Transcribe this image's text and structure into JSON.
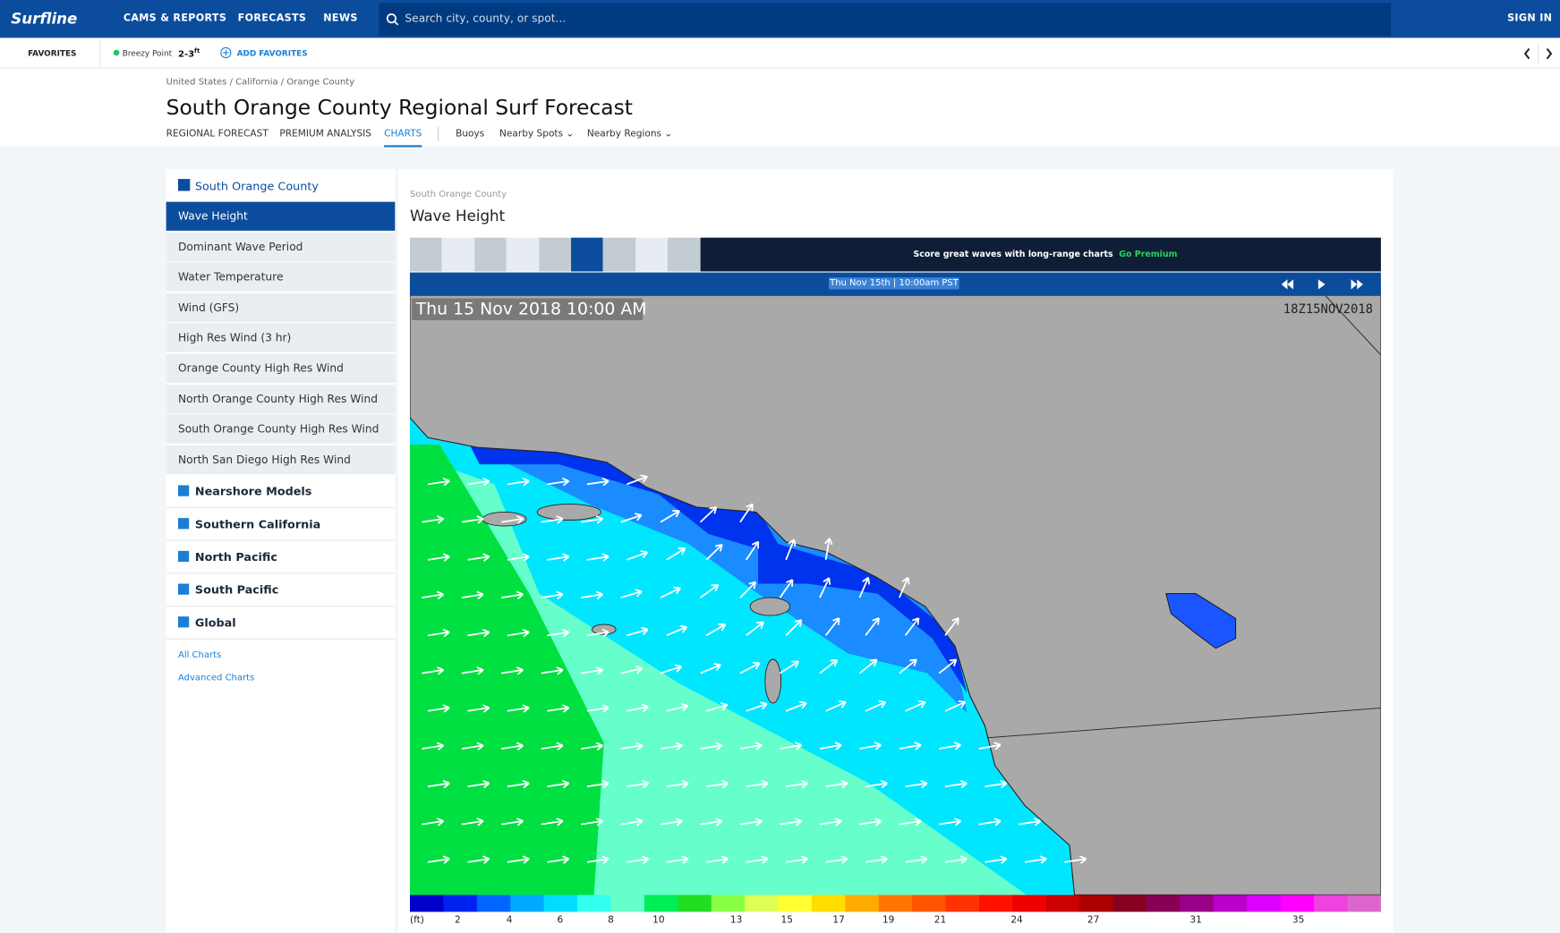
{
  "nav": {
    "logo": "Surfline",
    "links": [
      "CAMS & REPORTS",
      "FORECASTS",
      "NEWS"
    ],
    "search_placeholder": "Search city, county, or spot...",
    "sign_in": "SIGN IN"
  },
  "favorites": {
    "label": "FAVORITES",
    "spot": "Breezy Point",
    "size": "2-3",
    "unit": "ft",
    "add": "ADD FAVORITES"
  },
  "header": {
    "breadcrumb": "United States / California / Orange County",
    "title": "South Orange County Regional Surf Forecast",
    "tabs": [
      "REGIONAL FORECAST",
      "PREMIUM ANALYSIS",
      "CHARTS"
    ],
    "links": [
      "Buoys",
      "Nearby Spots",
      "Nearby Regions"
    ]
  },
  "sidebar": {
    "section": "South Orange County",
    "items": [
      "Wave Height",
      "Dominant Wave Period",
      "Water Temperature",
      "Wind (GFS)",
      "High Res Wind (3 hr)",
      "Orange County High Res Wind",
      "North Orange County High Res Wind",
      "South Orange County High Res Wind",
      "North San Diego High Res Wind"
    ],
    "groups": [
      "Nearshore Models",
      "Southern California",
      "North Pacific",
      "South Pacific",
      "Global"
    ],
    "links": [
      "All Charts",
      "Advanced Charts"
    ]
  },
  "chart": {
    "region": "South Orange County",
    "title": "Wave Height",
    "promo": "Score great waves with long-range charts",
    "promo_link": "Go Premium",
    "timestamp": "Thu Nov 15th | 10:00am PST",
    "map_label": "Thu 15 Nov 2018 10:00 AM",
    "map_code": "18Z15NOV2018",
    "legend": {
      "unit": "(ft)",
      "ticks": [
        2,
        4,
        6,
        8,
        10,
        13,
        15,
        17,
        19,
        21,
        24,
        27,
        31,
        35
      ],
      "colors": [
        "#0000c8",
        "#0022ee",
        "#0066ff",
        "#00aaff",
        "#00ddff",
        "#33ffee",
        "#66ffcc",
        "#00ee55",
        "#22dd22",
        "#88ff44",
        "#ddff55",
        "#ffff33",
        "#ffdd00",
        "#ffaa00",
        "#ff7700",
        "#ff5500",
        "#ff3300",
        "#ff1100",
        "#ee0000",
        "#cc0000",
        "#aa0000",
        "#880022",
        "#880055",
        "#990088",
        "#bb00cc",
        "#dd00ff",
        "#ff00ff",
        "#ee44dd",
        "#dd66cc"
      ]
    }
  }
}
